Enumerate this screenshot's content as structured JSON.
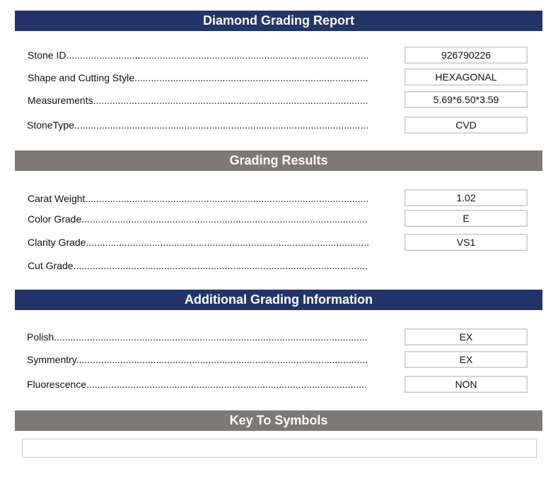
{
  "report": {
    "title": "Diamond Grading Report"
  },
  "stone": [
    {
      "label": "Stone ID",
      "value": "926790226"
    },
    {
      "label": "Shape and Cutting Style",
      "value": "HEXAGONAL"
    },
    {
      "label": "Measurements",
      "value": "5.69*6.50*3.59"
    },
    {
      "label": "StoneType",
      "value": "CVD"
    }
  ],
  "grading": {
    "title": "Grading Results",
    "rows": [
      {
        "label": "Carat Weight",
        "value": "1.02"
      },
      {
        "label": "Color Grade",
        "value": "E"
      },
      {
        "label": "Clarity Grade",
        "value": "VS1"
      },
      {
        "label": "Cut Grade"
      }
    ]
  },
  "additional": {
    "title": "Additional Grading Information",
    "rows": [
      {
        "label": "Polish",
        "value": "EX"
      },
      {
        "label": "Symmentry",
        "value": "EX"
      },
      {
        "label": "Fluorescence",
        "value": "NON"
      }
    ]
  },
  "key": {
    "title": "Key To Symbols",
    "value": ""
  },
  "colors": {
    "navy": "#233568",
    "gray": "#7d7977"
  }
}
